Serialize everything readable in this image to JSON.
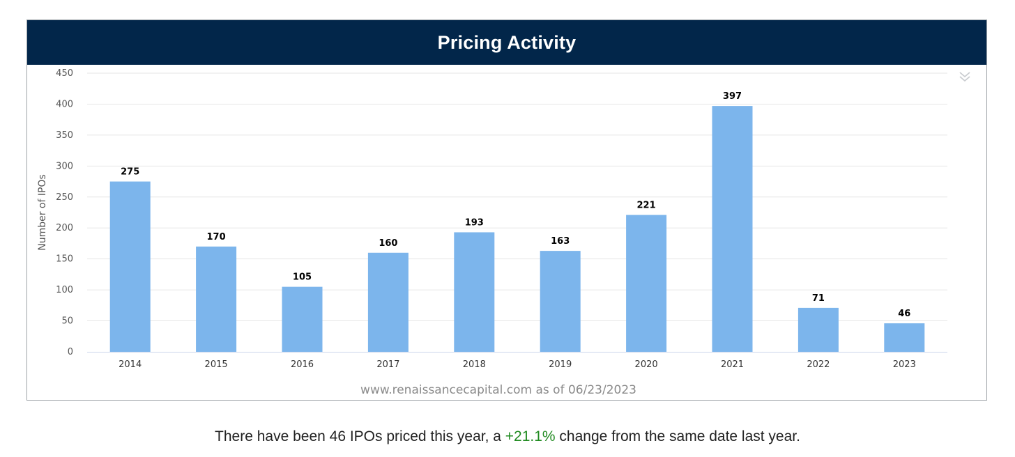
{
  "header": {
    "title": "Pricing Activity"
  },
  "menu": {
    "icon": "double-chevron-down-icon"
  },
  "source_note": "www.renaissancecapital.com as of 06/23/2023",
  "summary": {
    "prefix": "There have been 46 IPOs priced this year, a ",
    "change": "+21.1%",
    "suffix": " change from the same date last year."
  },
  "colors": {
    "bar": "#7cb5ec",
    "header": "#02264a",
    "grid": "#e6e6e6",
    "positive": "#1f8a1f"
  },
  "chart_data": {
    "type": "bar",
    "title": "Pricing Activity",
    "xlabel": "",
    "ylabel": "Number of IPOs",
    "categories": [
      "2014",
      "2015",
      "2016",
      "2017",
      "2018",
      "2019",
      "2020",
      "2021",
      "2022",
      "2023"
    ],
    "values": [
      275,
      170,
      105,
      160,
      193,
      163,
      221,
      397,
      71,
      46
    ],
    "ylim": [
      0,
      450
    ],
    "yticks": [
      0,
      50,
      100,
      150,
      200,
      250,
      300,
      350,
      400,
      450
    ],
    "grid": true,
    "data_labels": true
  }
}
